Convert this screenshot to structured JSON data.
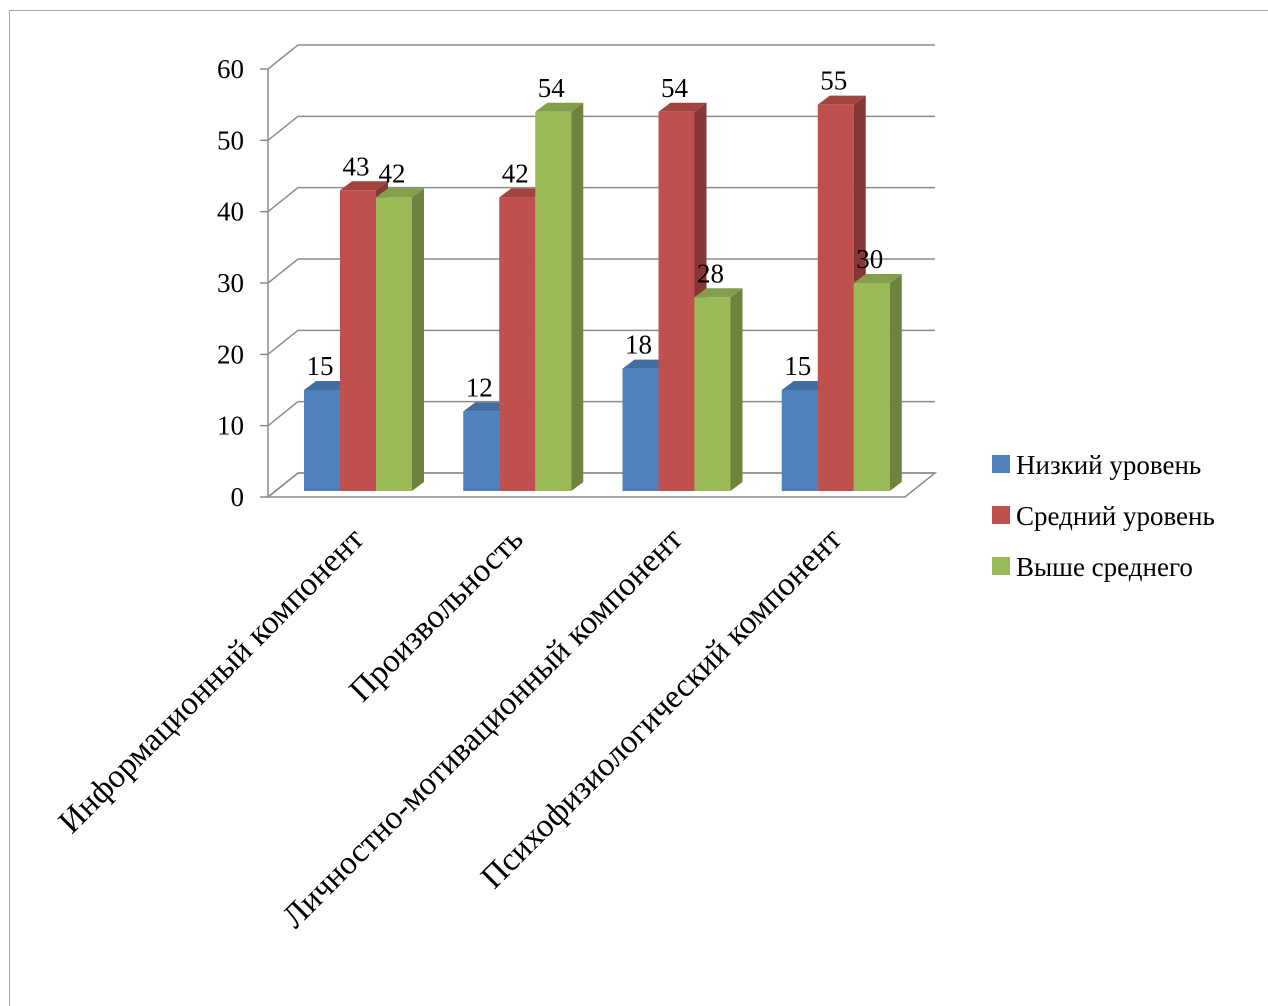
{
  "chart_data": {
    "type": "bar",
    "categories": [
      "Информационный компонент",
      "Произвольность",
      "Личностно-мотивационный компонент",
      "Психофизиологический компонент"
    ],
    "series": [
      {
        "name": "Низкий уровень",
        "values": [
          15,
          12,
          18,
          15
        ],
        "color": "#4f81bd"
      },
      {
        "name": "Средний уровень",
        "values": [
          43,
          42,
          54,
          55
        ],
        "color": "#c0504d"
      },
      {
        "name": "Выше среднего",
        "values": [
          42,
          54,
          28,
          30
        ],
        "color": "#9bbb59"
      }
    ],
    "ylim": [
      0,
      60
    ],
    "yticks": [
      "0",
      "10",
      "20",
      "30",
      "40",
      "50",
      "60"
    ],
    "grid": true,
    "legend": "right",
    "style": "3d-column"
  }
}
